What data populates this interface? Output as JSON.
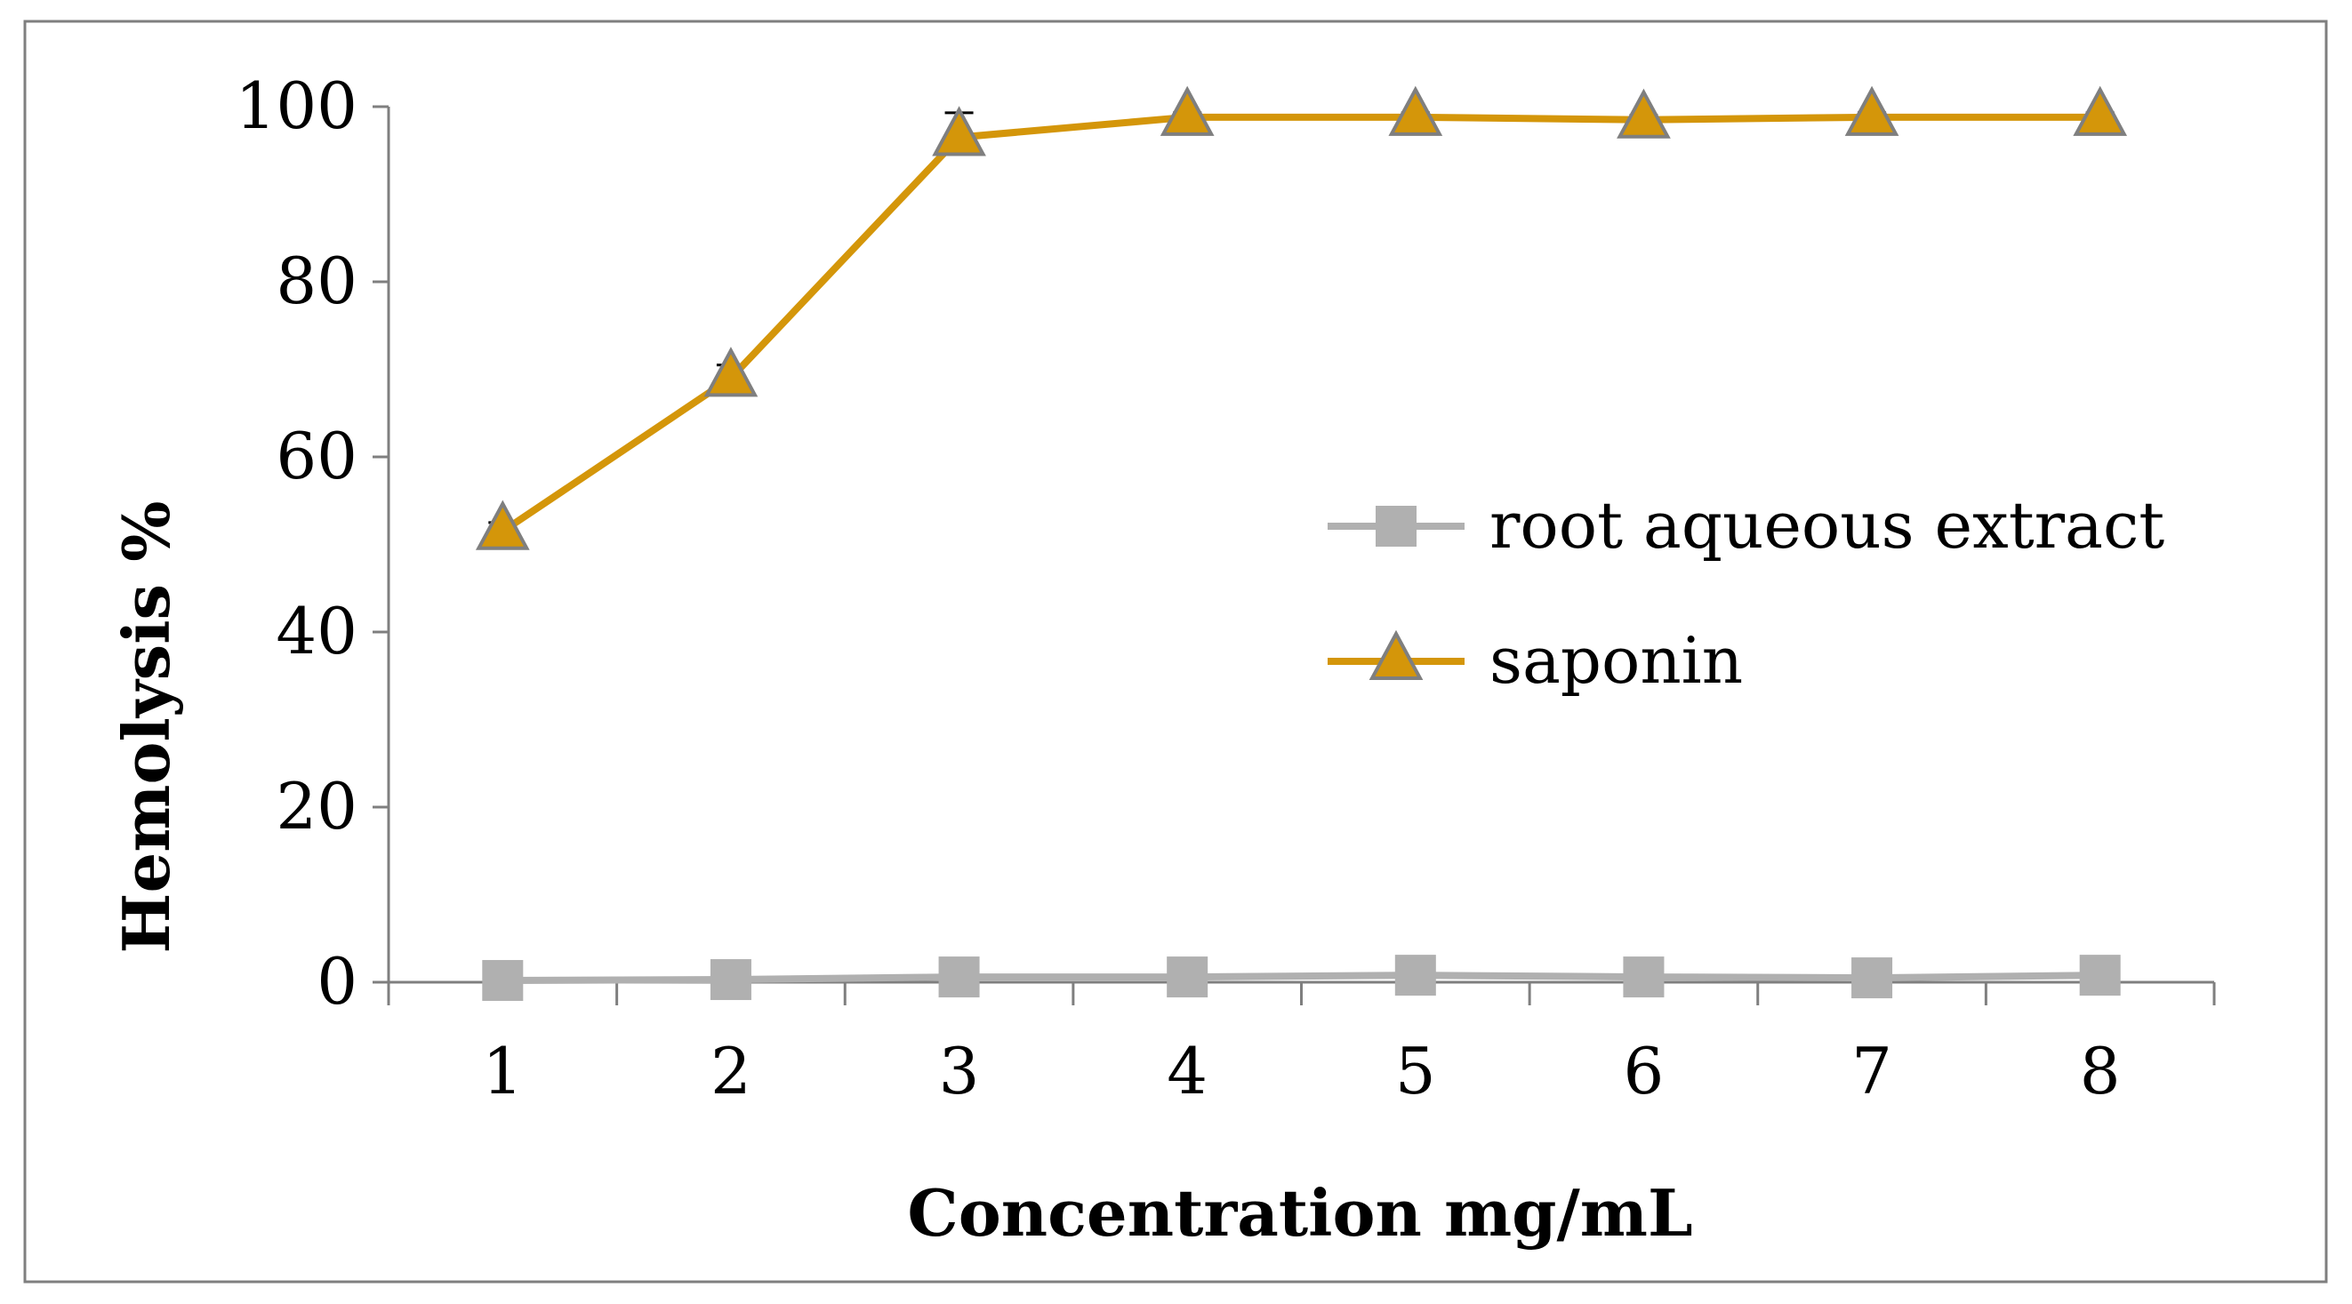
{
  "chart_data": {
    "type": "line",
    "title": "",
    "xlabel": "Concentration mg/mL",
    "ylabel": "Hemolysis %",
    "x": [
      1,
      2,
      3,
      4,
      5,
      6,
      7,
      8
    ],
    "ylim": [
      0,
      100
    ],
    "yticks": [
      0,
      20,
      40,
      60,
      80,
      100
    ],
    "grid": false,
    "legend_position": "right",
    "series": [
      {
        "name": "root aqueous extract",
        "marker": "square",
        "color": "#b0b0b0",
        "values": [
          0.2,
          0.3,
          0.6,
          0.6,
          0.8,
          0.6,
          0.5,
          0.8
        ]
      },
      {
        "name": "saponin",
        "marker": "triangle",
        "color": "#d4960a",
        "values": [
          51.5,
          69,
          96.5,
          98.8,
          98.8,
          98.5,
          98.8,
          98.8
        ],
        "error": [
          1.0,
          1.5,
          2.8,
          0.5,
          0.5,
          0.5,
          0.5,
          0.5
        ]
      }
    ]
  }
}
